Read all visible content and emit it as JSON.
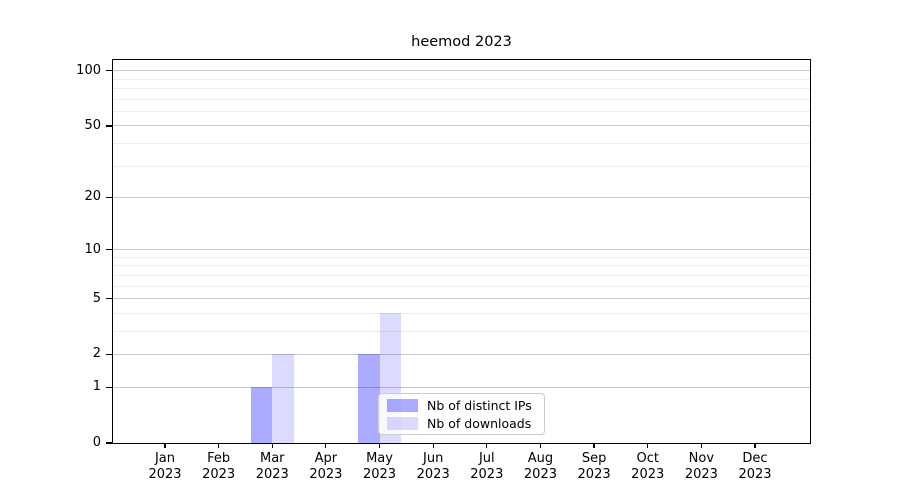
{
  "figure": {
    "background": "#ffffff"
  },
  "chart_data": {
    "type": "bar",
    "title": "heemod 2023",
    "categories": [
      "Jan",
      "Feb",
      "Mar",
      "Apr",
      "May",
      "Jun",
      "Jul",
      "Aug",
      "Sep",
      "Oct",
      "Nov",
      "Dec"
    ],
    "year": "2023",
    "series": [
      {
        "key": "distinct-ips",
        "name": "Nb of distinct IPs",
        "color": "rgba(0,0,255,0.33)",
        "values": [
          0,
          0,
          1,
          0,
          2,
          0,
          0,
          0,
          0,
          0,
          0,
          0
        ]
      },
      {
        "key": "downloads",
        "name": "Nb of downloads",
        "color": "rgba(0,0,255,0.14)",
        "values": [
          0,
          0,
          2,
          0,
          4,
          0,
          0,
          0,
          0,
          0,
          0,
          0
        ]
      }
    ],
    "y_axis": {
      "scale": "log1p",
      "ticks": [
        0,
        1,
        2,
        5,
        10,
        20,
        50,
        100
      ],
      "minor_gridlines": [
        3,
        4,
        6,
        7,
        8,
        9,
        30,
        40,
        60,
        70,
        80,
        90
      ],
      "max": 114.5
    },
    "x_axis": {
      "tick_label_format": "month over year, two lines"
    },
    "legend": {
      "labels": [
        "Nb of distinct IPs",
        "Nb of downloads"
      ],
      "position": "lower center, inside plot"
    },
    "grid": true,
    "colors": {
      "grid_major": "#c9c9c9",
      "grid_minor": "#ececec",
      "spine": "#000000",
      "text": "#000000"
    }
  }
}
